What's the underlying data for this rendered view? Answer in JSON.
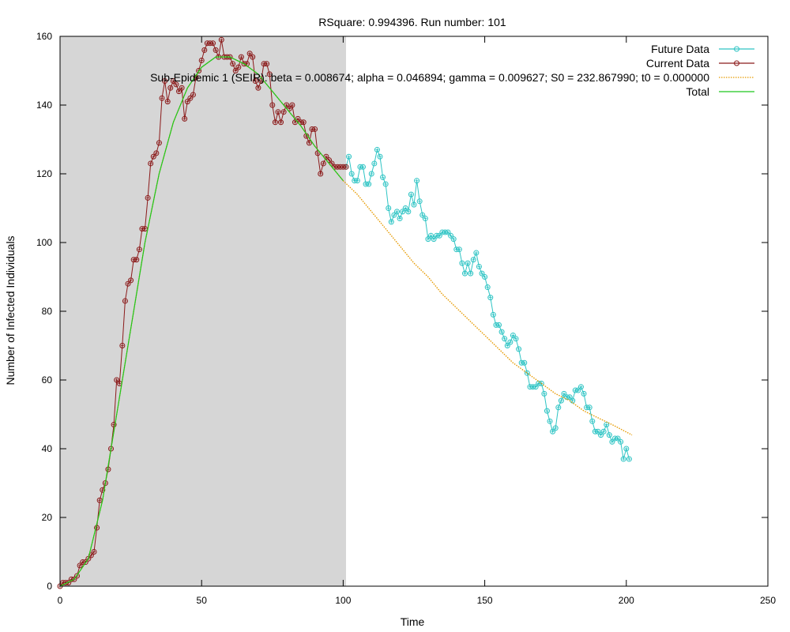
{
  "chart_data": {
    "type": "line",
    "title": "RSquare: 0.994396. Run number: 101",
    "xlabel": "Time",
    "ylabel": "Number of Infected Individuals",
    "xlim": [
      0,
      250
    ],
    "ylim": [
      0,
      160
    ],
    "xticks": [
      0,
      50,
      100,
      150,
      200,
      250
    ],
    "yticks": [
      0,
      20,
      40,
      60,
      80,
      100,
      120,
      140,
      160
    ],
    "grid": false,
    "legend_position": "top-right",
    "shaded_region": {
      "x_from": 0,
      "x_to": 101,
      "color": "#d6d6d6"
    },
    "series": [
      {
        "name": "Future Data",
        "color": "#2ec4c4",
        "style": "line-points",
        "x": [
          101,
          102,
          103,
          104,
          105,
          106,
          107,
          108,
          109,
          110,
          111,
          112,
          113,
          114,
          115,
          116,
          117,
          118,
          119,
          120,
          121,
          122,
          123,
          124,
          125,
          126,
          127,
          128,
          129,
          130,
          131,
          132,
          133,
          134,
          135,
          136,
          137,
          138,
          139,
          140,
          141,
          142,
          143,
          144,
          145,
          146,
          147,
          148,
          149,
          150,
          151,
          152,
          153,
          154,
          155,
          156,
          157,
          158,
          159,
          160,
          161,
          162,
          163,
          164,
          165,
          166,
          167,
          168,
          169,
          170,
          171,
          172,
          173,
          174,
          175,
          176,
          177,
          178,
          179,
          180,
          181,
          182,
          183,
          184,
          185,
          186,
          187,
          188,
          189,
          190,
          191,
          192,
          193,
          194,
          195,
          196,
          197,
          198,
          199,
          200,
          201
        ],
        "y": [
          122,
          125,
          120,
          118,
          118,
          122,
          122,
          117,
          117,
          120,
          123,
          127,
          125,
          119,
          117,
          110,
          106,
          108,
          109,
          107,
          109,
          110,
          109,
          114,
          111,
          118,
          112,
          108,
          107,
          101,
          102,
          101,
          102,
          102,
          103,
          103,
          103,
          102,
          101,
          98,
          98,
          94,
          91,
          94,
          91,
          95,
          97,
          93,
          91,
          90,
          87,
          84,
          79,
          76,
          76,
          74,
          72,
          70,
          71,
          73,
          72,
          69,
          65,
          65,
          62,
          58,
          58,
          58,
          59,
          59,
          56,
          51,
          48,
          45,
          46,
          52,
          54,
          56,
          55,
          55,
          54,
          57,
          57,
          58,
          56,
          52,
          52,
          48,
          45,
          45,
          44,
          45,
          47,
          44,
          42,
          43,
          43,
          42,
          37,
          40,
          37
        ]
      },
      {
        "name": "Current Data",
        "color": "#8b1a1a",
        "style": "line-points",
        "x": [
          0,
          1,
          2,
          3,
          4,
          5,
          6,
          7,
          8,
          9,
          10,
          11,
          12,
          13,
          14,
          15,
          16,
          17,
          18,
          19,
          20,
          21,
          22,
          23,
          24,
          25,
          26,
          27,
          28,
          29,
          30,
          31,
          32,
          33,
          34,
          35,
          36,
          37,
          38,
          39,
          40,
          41,
          42,
          43,
          44,
          45,
          46,
          47,
          48,
          49,
          50,
          51,
          52,
          53,
          54,
          55,
          56,
          57,
          58,
          59,
          60,
          61,
          62,
          63,
          64,
          65,
          66,
          67,
          68,
          69,
          70,
          71,
          72,
          73,
          74,
          75,
          76,
          77,
          78,
          79,
          80,
          81,
          82,
          83,
          84,
          85,
          86,
          87,
          88,
          89,
          90,
          91,
          92,
          93,
          94,
          95,
          96,
          97,
          98,
          99,
          100,
          101
        ],
        "y": [
          0,
          1,
          1,
          1,
          2,
          2,
          3,
          6,
          7,
          7,
          8,
          9,
          10,
          17,
          25,
          28,
          30,
          34,
          40,
          47,
          60,
          59,
          70,
          83,
          88,
          89,
          95,
          95,
          98,
          104,
          104,
          113,
          123,
          125,
          126,
          129,
          142,
          147,
          141,
          145,
          147,
          146,
          144,
          145,
          136,
          141,
          142,
          143,
          148,
          150,
          153,
          156,
          158,
          158,
          158,
          156,
          154,
          159,
          154,
          154,
          154,
          152,
          150,
          151,
          154,
          152,
          152,
          155,
          154,
          147,
          145,
          147,
          152,
          152,
          149,
          140,
          135,
          138,
          135,
          138,
          140,
          139,
          140,
          135,
          136,
          135,
          135,
          131,
          129,
          133,
          133,
          126,
          120,
          123,
          125,
          124,
          123,
          122,
          122,
          122,
          122,
          122
        ]
      },
      {
        "name": "Sub-Epidemic 1 (SEIR): beta = 0.008674; alpha = 0.046894; gamma = 0.009627; S0 = 232.867990; t0 = 0.000000",
        "color": "#e69a00",
        "style": "dots",
        "x": [
          0,
          5,
          10,
          15,
          20,
          25,
          30,
          35,
          40,
          45,
          50,
          55,
          60,
          65,
          70,
          75,
          80,
          85,
          90,
          95,
          100,
          105,
          110,
          115,
          120,
          125,
          130,
          135,
          140,
          145,
          150,
          155,
          160,
          165,
          170,
          175,
          180,
          185,
          190,
          195,
          202
        ],
        "y": [
          0,
          2,
          8,
          25,
          50,
          75,
          100,
          120,
          135,
          145,
          151,
          154,
          154,
          152,
          149,
          144,
          139,
          134,
          128,
          123,
          118,
          114,
          109,
          104,
          99,
          94,
          90,
          85,
          81,
          77,
          73,
          69,
          65,
          62,
          59,
          56,
          54,
          51,
          49,
          47,
          44
        ]
      },
      {
        "name": "Total",
        "color": "#1ec81e",
        "style": "line",
        "x": [
          0,
          5,
          10,
          15,
          20,
          25,
          30,
          35,
          40,
          45,
          50,
          55,
          60,
          65,
          70,
          75,
          80,
          85,
          90,
          95,
          100
        ],
        "y": [
          0,
          2,
          8,
          25,
          50,
          75,
          100,
          120,
          135,
          145,
          151,
          154,
          154,
          152,
          149,
          144,
          139,
          134,
          128,
          123,
          118
        ]
      }
    ]
  }
}
